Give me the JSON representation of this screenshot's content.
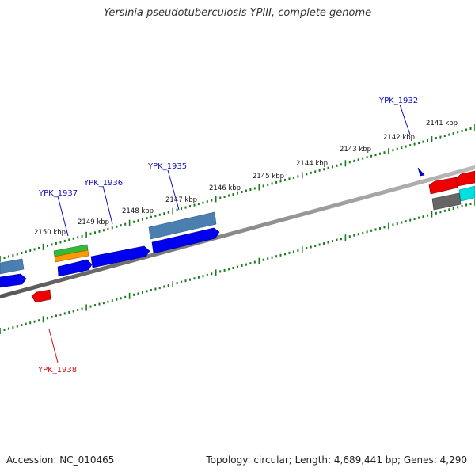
{
  "title": "Yersinia pseudotuberculosis YPIII, complete genome",
  "footer": {
    "accession": "Accession: NC_010465",
    "summary": "Topology: circular; Length: 4,689,441 bp; Genes: 4,290"
  },
  "ruler": {
    "unit": "kbp",
    "labels": [
      "2141 kbp",
      "2142 kbp",
      "2143 kbp",
      "2144 kbp",
      "2145 kbp",
      "2146 kbp",
      "2147 kbp",
      "2148 kbp",
      "2149 kbp",
      "2150 kbp"
    ]
  },
  "gene_labels": [
    "YPK_1932",
    "YPK_1935",
    "YPK_1936",
    "YPK_1937",
    "YPK_1938"
  ],
  "colors": {
    "forward_label": "#1010c0",
    "reverse_label": "#d01010",
    "tick": "#1a7a1a",
    "backbone": "#888888",
    "gene_blue": "#0000ee",
    "gene_steel": "#4a7fb0",
    "gene_red": "#ee0000",
    "gene_green": "#33bb33",
    "gene_orange": "#ff9900",
    "gene_gray": "#666666",
    "gene_cyan": "#00e0e0"
  }
}
